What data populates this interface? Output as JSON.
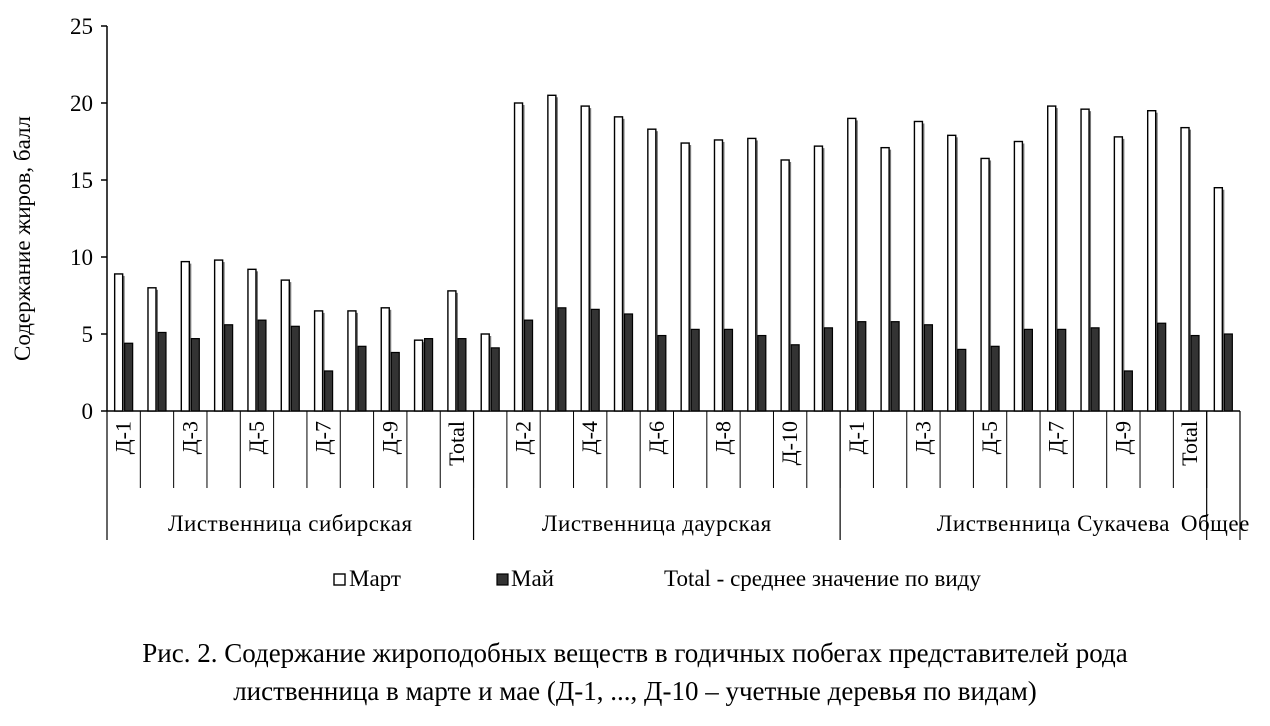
{
  "chart_data": {
    "type": "bar",
    "ylabel": "Содержание жиров, балл",
    "ylim": [
      0,
      25
    ],
    "yticks": [
      "0",
      "5",
      "10",
      "15",
      "20",
      "25"
    ],
    "grid": false,
    "legend_position": "bottom",
    "legend_note": "Total - среднее значение по виду",
    "group_labels": [
      "Лиственница сибирская",
      "Лиственница даурская",
      "Лиственница Сукачева",
      "Общее"
    ],
    "categories": [
      "Д-1",
      "Д-2",
      "Д-3",
      "Д-4",
      "Д-5",
      "Д-6",
      "Д-7",
      "Д-8",
      "Д-9",
      "Д-10",
      "Total",
      "Д-1",
      "Д-2",
      "Д-3",
      "Д-4",
      "Д-5",
      "Д-6",
      "Д-7",
      "Д-8",
      "Д-9",
      "Д-10",
      "Total",
      "Д-1",
      "Д-2",
      "Д-3",
      "Д-4",
      "Д-5",
      "Д-6",
      "Д-7",
      "Д-8",
      "Д-9",
      "Д-10",
      "Total",
      "Общее"
    ],
    "shown_tick_labels": [
      "Д-1",
      "",
      "Д-3",
      "",
      "Д-5",
      "",
      "Д-7",
      "",
      "Д-9",
      "",
      "Total",
      "",
      "Д-2",
      "",
      "Д-4",
      "",
      "Д-6",
      "",
      "Д-8",
      "",
      "Д-10",
      "",
      "Д-1",
      "",
      "Д-3",
      "",
      "Д-5",
      "",
      "Д-7",
      "",
      "Д-9",
      "",
      "Total",
      ""
    ],
    "series": [
      {
        "name": "Март",
        "color": "#ffffff",
        "values": [
          8.9,
          8.0,
          9.7,
          9.8,
          9.2,
          8.5,
          6.5,
          6.5,
          6.7,
          4.6,
          7.8,
          5.0,
          20.0,
          20.5,
          19.8,
          19.1,
          18.3,
          17.4,
          17.6,
          17.7,
          16.3,
          17.2,
          19.0,
          17.1,
          18.8,
          17.9,
          16.4,
          17.5,
          19.8,
          19.6,
          17.8,
          19.5,
          18.4,
          14.5
        ]
      },
      {
        "name": "Май",
        "color": "#333333",
        "values": [
          4.4,
          5.1,
          4.7,
          5.6,
          5.9,
          5.5,
          2.6,
          4.2,
          3.8,
          4.7,
          4.7,
          4.1,
          5.9,
          6.7,
          6.6,
          6.3,
          4.9,
          5.3,
          5.3,
          4.9,
          4.3,
          5.4,
          5.8,
          5.8,
          5.6,
          4.0,
          4.2,
          5.3,
          5.3,
          5.4,
          2.6,
          5.7,
          4.9,
          5.0
        ]
      }
    ]
  },
  "caption": {
    "line1": "Рис. 2. Содержание жироподобных веществ в годичных побегах  представителей  рода",
    "line2": "лиственница в марте и мае (Д-1, ..., Д-10 – учетные деревья по видам)"
  }
}
